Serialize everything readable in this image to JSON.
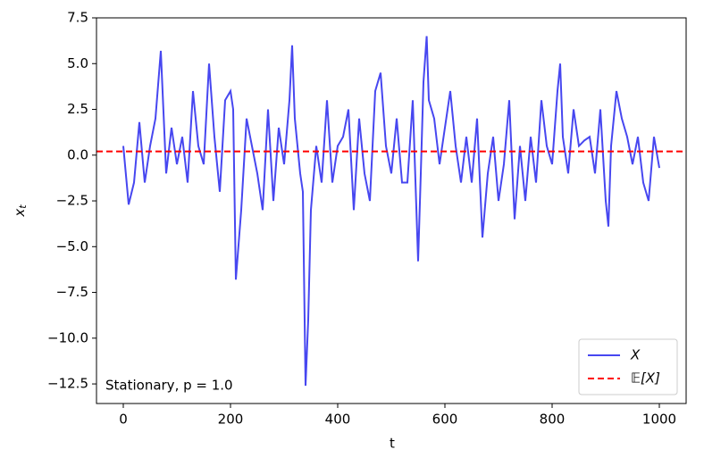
{
  "chart_data": {
    "type": "line",
    "xlabel": "t",
    "ylabel": {
      "base": "x",
      "sub": "t"
    },
    "annotation": "Stationary, p = 1.0",
    "legend": "lower right",
    "x": [
      0,
      10,
      20,
      30,
      40,
      50,
      60,
      70,
      80,
      90,
      100,
      110,
      120,
      130,
      140,
      150,
      160,
      170,
      180,
      190,
      200,
      205,
      210,
      220,
      230,
      240,
      250,
      260,
      270,
      280,
      290,
      300,
      310,
      315,
      320,
      330,
      335,
      340,
      345,
      350,
      360,
      370,
      380,
      390,
      400,
      410,
      420,
      430,
      440,
      450,
      460,
      470,
      480,
      490,
      500,
      510,
      520,
      530,
      540,
      550,
      555,
      560,
      566,
      570,
      580,
      590,
      600,
      610,
      620,
      630,
      640,
      650,
      660,
      670,
      680,
      690,
      700,
      710,
      720,
      730,
      740,
      750,
      760,
      770,
      780,
      790,
      800,
      810,
      815,
      820,
      830,
      840,
      850,
      860,
      870,
      880,
      890,
      900,
      905,
      910,
      920,
      930,
      940,
      950,
      960,
      970,
      980,
      990,
      1000
    ],
    "series": [
      {
        "name": "X",
        "color": "#4747f0",
        "values": [
          0.5,
          -2.7,
          -1.5,
          1.8,
          -1.5,
          0.5,
          2.0,
          5.7,
          -1.0,
          1.5,
          -0.5,
          1.0,
          -1.5,
          3.5,
          0.5,
          -0.5,
          5.0,
          1.0,
          -2.0,
          3.0,
          3.5,
          2.5,
          -6.8,
          -3.0,
          2.0,
          0.5,
          -1.0,
          -3.0,
          2.5,
          -2.5,
          1.5,
          -0.5,
          3.0,
          6.0,
          2.0,
          -1.0,
          -2.0,
          -12.6,
          -9.0,
          -3.0,
          0.5,
          -1.5,
          3.0,
          -1.5,
          0.5,
          1.0,
          2.5,
          -3.0,
          2.0,
          -1.0,
          -2.5,
          3.5,
          4.5,
          0.5,
          -1.0,
          2.0,
          -1.5,
          -1.5,
          3.0,
          -5.8,
          -1.0,
          4.0,
          6.5,
          3.0,
          2.0,
          -0.5,
          1.5,
          3.5,
          0.5,
          -1.5,
          1.0,
          -1.5,
          2.0,
          -4.5,
          -1.0,
          1.0,
          -2.5,
          -0.5,
          3.0,
          -3.5,
          0.5,
          -2.5,
          1.0,
          -1.5,
          3.0,
          0.5,
          -0.5,
          3.5,
          5.0,
          1.0,
          -1.0,
          2.5,
          0.5,
          0.8,
          1.0,
          -1.0,
          2.5,
          -2.5,
          -3.9,
          0.5,
          3.5,
          2.0,
          1.0,
          -0.5,
          1.0,
          -1.5,
          -2.5,
          1.0,
          -0.7
        ]
      }
    ],
    "hlines": [
      {
        "name": "𝔼[X]",
        "value": 0.2,
        "color": "#ff0000"
      }
    ],
    "xlim": [
      -50,
      1050
    ],
    "ylim": [
      -13.57,
      7.5
    ],
    "xticks": [
      0,
      200,
      400,
      600,
      800,
      1000
    ],
    "yticks": [
      {
        "value": -12.5,
        "label": "−12.5"
      },
      {
        "value": -10,
        "label": "−10.0"
      },
      {
        "value": -7.5,
        "label": "−7.5"
      },
      {
        "value": -5,
        "label": "−5.0"
      },
      {
        "value": -2.5,
        "label": "−2.5"
      },
      {
        "value": 0,
        "label": "0.0"
      },
      2.5,
      {
        "value": 5,
        "label": "5.0"
      },
      7.5
    ]
  }
}
